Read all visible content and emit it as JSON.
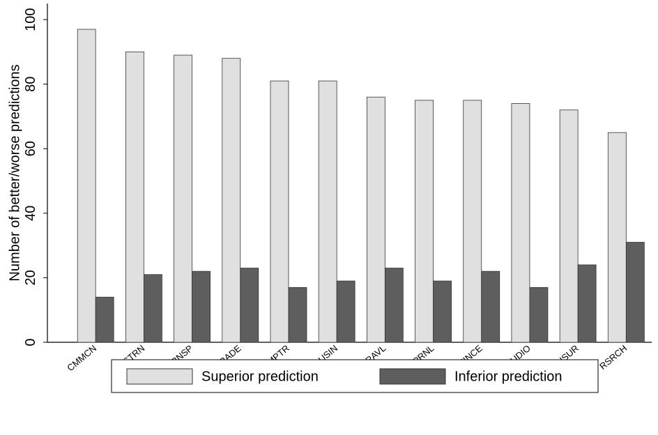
{
  "chart_data": {
    "type": "bar",
    "y_label": "Number of better/worse predictions",
    "categories": [
      "CMMCN",
      "CSTRN",
      "TRNSP",
      "TRADE",
      "CMPTR",
      "BUSIN",
      "TRAVL",
      "OPRNL",
      "FINCE",
      "AUDIO",
      "INSUR",
      "RSRCH"
    ],
    "series": [
      {
        "name": "Superior prediction",
        "color": "#e0e0e0",
        "values": [
          97,
          90,
          89,
          88,
          81,
          81,
          76,
          75,
          75,
          74,
          72,
          65
        ]
      },
      {
        "name": "Inferior prediction",
        "color": "#5e5e5e",
        "values": [
          14,
          21,
          22,
          23,
          17,
          19,
          23,
          19,
          22,
          17,
          24,
          31
        ]
      }
    ],
    "ylim": [
      0,
      105
    ],
    "yticks": [
      0,
      20,
      40,
      60,
      80,
      100
    ],
    "grid": false,
    "legend": "bottom"
  }
}
